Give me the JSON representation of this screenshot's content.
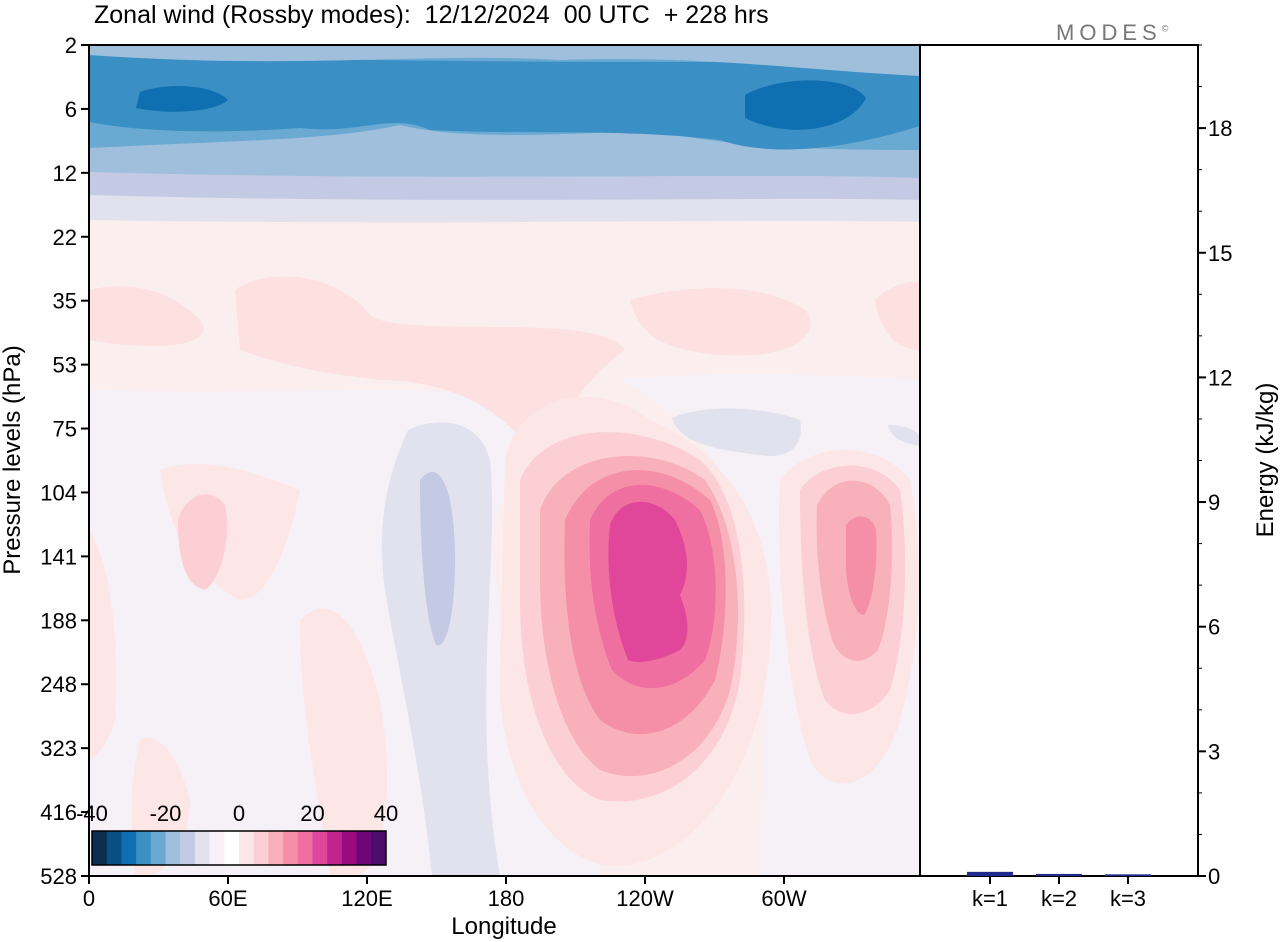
{
  "title": "Zonal wind (Rossby modes):  12/12/2024  00 UTC  + 228 hrs",
  "brand": "MODES",
  "brand_mark": "©",
  "chart_data": [
    {
      "type": "heatmap",
      "variable": "Zonal wind (Rossby modes)",
      "xlabel": "Longitude",
      "ylabel": "Pressure levels (hPa)",
      "x_ticks": [
        "0",
        "60E",
        "120E",
        "180",
        "120W",
        "60W"
      ],
      "y_ticks": [
        "2",
        "6",
        "12",
        "22",
        "35",
        "53",
        "75",
        "104",
        "141",
        "188",
        "248",
        "323",
        "416",
        "528"
      ],
      "colorbar": {
        "range": [
          -40,
          40
        ],
        "labels": [
          "-40",
          "-20",
          "0",
          "20",
          "40"
        ],
        "colors": [
          "#0c2d4c",
          "#0a4f83",
          "#0f6fb0",
          "#3a8fc4",
          "#6aaad2",
          "#9fbfdc",
          "#c4cae3",
          "#e2e2ef",
          "#f7f1f7",
          "#ffffff",
          "#fde6e6",
          "#fbcfd3",
          "#f8b1bb",
          "#f58fa8",
          "#ee6fa0",
          "#e0479a",
          "#c2248e",
          "#9b0b80",
          "#6d0677",
          "#4b0c6b"
        ]
      }
    },
    {
      "type": "bar",
      "ylabel": "Energy (kJ/kg)",
      "categories": [
        "k=1",
        "k=2",
        "k=3"
      ],
      "values": [
        0.1,
        0.05,
        0.04
      ],
      "ylim": [
        0,
        20
      ],
      "y_ticks": [
        "0",
        "3",
        "6",
        "9",
        "12",
        "15",
        "18"
      ],
      "bar_color": "#1f2a8c"
    }
  ]
}
